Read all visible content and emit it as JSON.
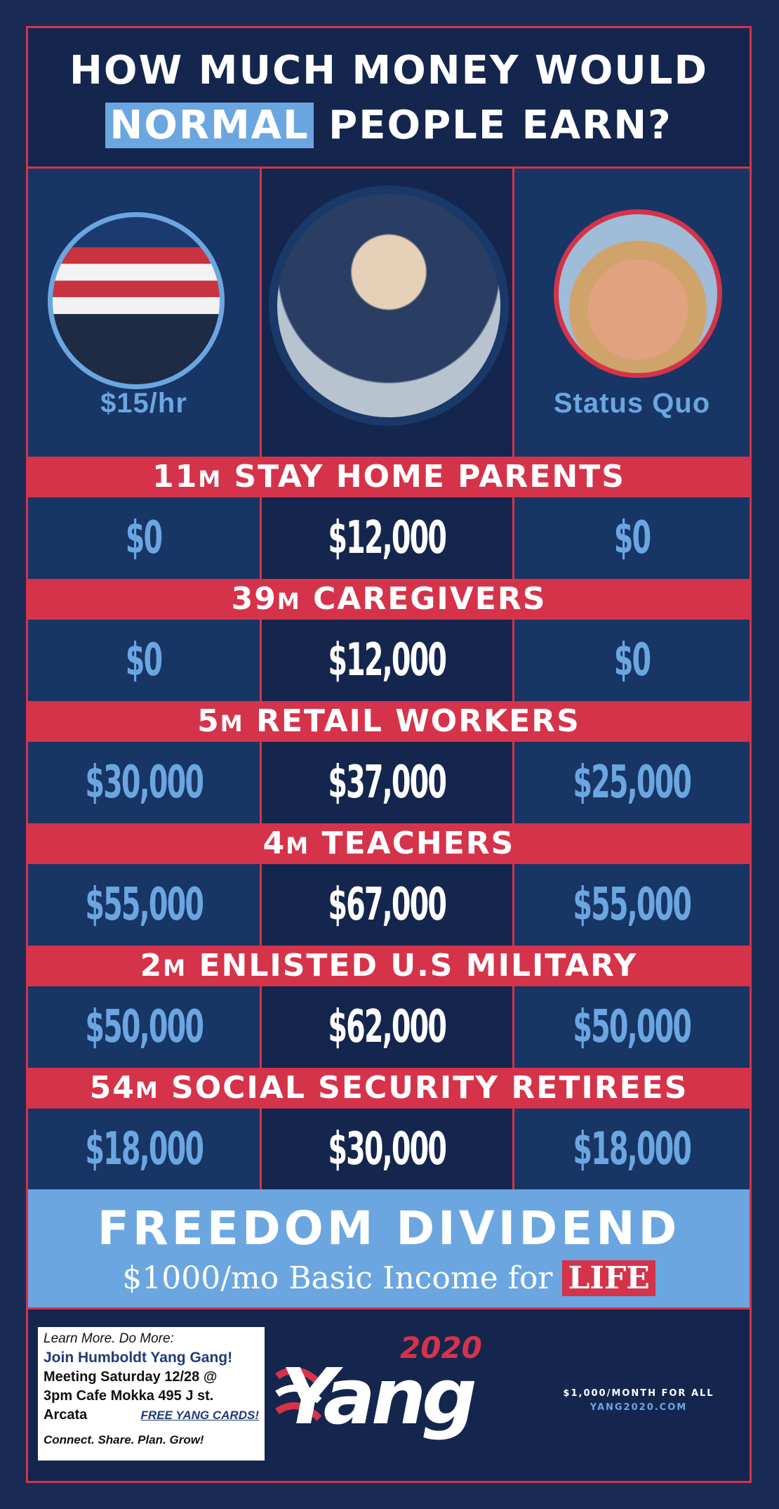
{
  "header": {
    "line1": "HOW MUCH MONEY WOULD",
    "highlight": "NORMAL",
    "line2_rest": " PEOPLE EARN?"
  },
  "candidates": [
    {
      "label": "$15/hr"
    },
    {
      "label": ""
    },
    {
      "label": "Status Quo"
    }
  ],
  "categories": [
    {
      "count": "11",
      "unit": "M",
      "title": " STAY HOME PARENTS",
      "values": [
        "$0",
        "$12,000",
        "$0"
      ]
    },
    {
      "count": "39",
      "unit": "M",
      "title": " CAREGIVERS",
      "values": [
        "$0",
        "$12,000",
        "$0"
      ]
    },
    {
      "count": "5",
      "unit": "M",
      "title": " RETAIL WORKERS",
      "values": [
        "$30,000",
        "$37,000",
        "$25,000"
      ]
    },
    {
      "count": "4",
      "unit": "M",
      "title": " TEACHERS",
      "values": [
        "$55,000",
        "$67,000",
        "$55,000"
      ]
    },
    {
      "count": "2",
      "unit": "M",
      "title": " ENLISTED U.S MILITARY",
      "values": [
        "$50,000",
        "$62,000",
        "$50,000"
      ]
    },
    {
      "count": "54",
      "unit": "M",
      "title": " SOCIAL SECURITY RETIREES",
      "values": [
        "$18,000",
        "$30,000",
        "$18,000"
      ]
    }
  ],
  "freedom_dividend": {
    "title": "FREEDOM DIVIDEND",
    "subtitle": "$1000/mo Basic Income for ",
    "emphasis": "LIFE"
  },
  "card": {
    "line1": "Learn More. Do More:",
    "line2": "Join Humboldt Yang Gang!",
    "line3": "Meeting Saturday 12/28 @",
    "line4": "3pm Cafe Mokka 495 J st.",
    "line5": "Arcata",
    "link": "FREE YANG CARDS!",
    "line6": "Connect. Share. Plan. Grow!"
  },
  "logo": {
    "year": "2020",
    "name": "Yang"
  },
  "tagline": {
    "line1": "$1,000/MONTH FOR ALL",
    "line2": "YANG2020.COM"
  },
  "colors": {
    "navy": "#1a2b55",
    "panel_dark": "#14264e",
    "panel": "#173565",
    "red": "#d5334a",
    "light_blue": "#6ba6e0"
  }
}
